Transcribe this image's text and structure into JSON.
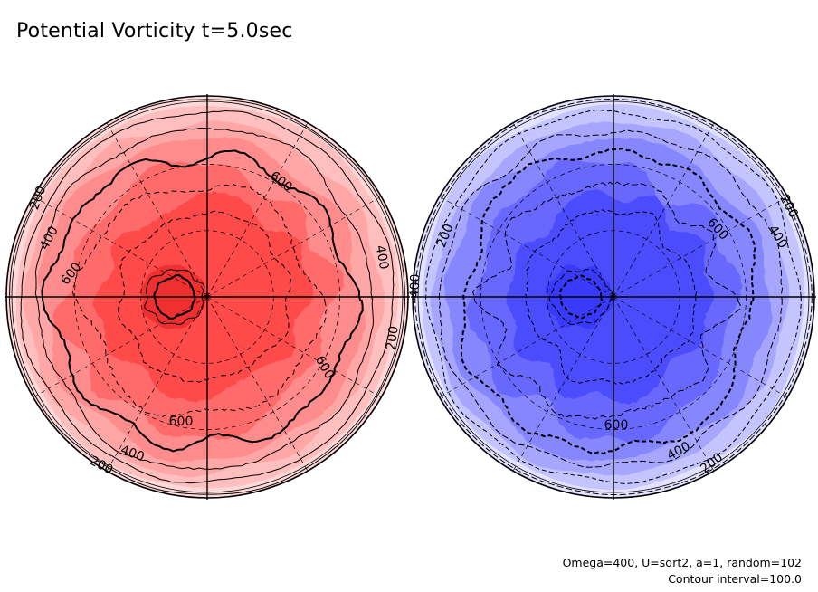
{
  "title": "Potential Vorticity t=5.0sec",
  "footer": {
    "params": "Omega=400, U=sqrt2, a=1, random=102",
    "contour_note": "Contour interval=100.0"
  },
  "colors": {
    "north_levels": [
      "#ffd9d9",
      "#ffbfbf",
      "#ffa6a6",
      "#ff8c8c",
      "#ff6b6b",
      "#ff4a4a",
      "#f03030"
    ],
    "south_levels": [
      "#e2e2ff",
      "#c4c4ff",
      "#a6a6ff",
      "#8686ff",
      "#6868ff",
      "#4c4cff",
      "#3a3aff"
    ]
  },
  "chart_data": [
    {
      "type": "polar-contour",
      "hemisphere": "north",
      "contour_levels": [
        0,
        100,
        200,
        300,
        400,
        500,
        600,
        700,
        800
      ],
      "contour_labels": [
        "200",
        "400",
        "600",
        "600",
        "400",
        "200",
        "600",
        "400",
        "200",
        "600"
      ],
      "line_style": "solid"
    },
    {
      "type": "polar-contour",
      "hemisphere": "south",
      "contour_levels": [
        0,
        -100,
        -200,
        -300,
        -400,
        -500,
        -600,
        -700,
        -800
      ],
      "contour_labels": [
        "200",
        "400",
        "600",
        "200",
        "400",
        "600",
        "600",
        "400",
        "200"
      ],
      "line_style": "dashed"
    }
  ]
}
